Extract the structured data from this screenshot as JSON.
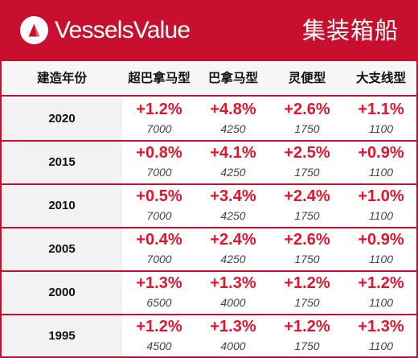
{
  "banner": {
    "brand": "VesselsValue",
    "title": "集装箱船",
    "logo_icon": "vesselsvalue-logo-icon",
    "color": "#c8102e"
  },
  "table": {
    "headers": [
      "建造年份",
      "超巴拿马型",
      "巴拿马型",
      "灵便型",
      "大支线型"
    ],
    "rows": [
      {
        "year": "2020",
        "cells": [
          {
            "pct": "+1.2%",
            "base": "7000"
          },
          {
            "pct": "+4.8%",
            "base": "4250"
          },
          {
            "pct": "+2.6%",
            "base": "1750"
          },
          {
            "pct": "+1.1%",
            "base": "1100"
          }
        ]
      },
      {
        "year": "2015",
        "cells": [
          {
            "pct": "+0.8%",
            "base": "7000"
          },
          {
            "pct": "+4.1%",
            "base": "4250"
          },
          {
            "pct": "+2.5%",
            "base": "1750"
          },
          {
            "pct": "+0.9%",
            "base": "1100"
          }
        ]
      },
      {
        "year": "2010",
        "cells": [
          {
            "pct": "+0.5%",
            "base": "7000"
          },
          {
            "pct": "+3.4%",
            "base": "4250"
          },
          {
            "pct": "+2.4%",
            "base": "1750"
          },
          {
            "pct": "+1.0%",
            "base": "1100"
          }
        ]
      },
      {
        "year": "2005",
        "cells": [
          {
            "pct": "+0.4%",
            "base": "7000"
          },
          {
            "pct": "+2.4%",
            "base": "4250"
          },
          {
            "pct": "+2.6%",
            "base": "1750"
          },
          {
            "pct": "+0.9%",
            "base": "1100"
          }
        ]
      },
      {
        "year": "2000",
        "cells": [
          {
            "pct": "+1.3%",
            "base": "6500"
          },
          {
            "pct": "+1.3%",
            "base": "4000"
          },
          {
            "pct": "+1.2%",
            "base": "1750"
          },
          {
            "pct": "+1.2%",
            "base": "1100"
          }
        ]
      },
      {
        "year": "1995",
        "cells": [
          {
            "pct": "+1.2%",
            "base": "4500"
          },
          {
            "pct": "+1.3%",
            "base": "4000"
          },
          {
            "pct": "+1.2%",
            "base": "1750"
          },
          {
            "pct": "+1.3%",
            "base": "1100"
          }
        ]
      }
    ]
  }
}
